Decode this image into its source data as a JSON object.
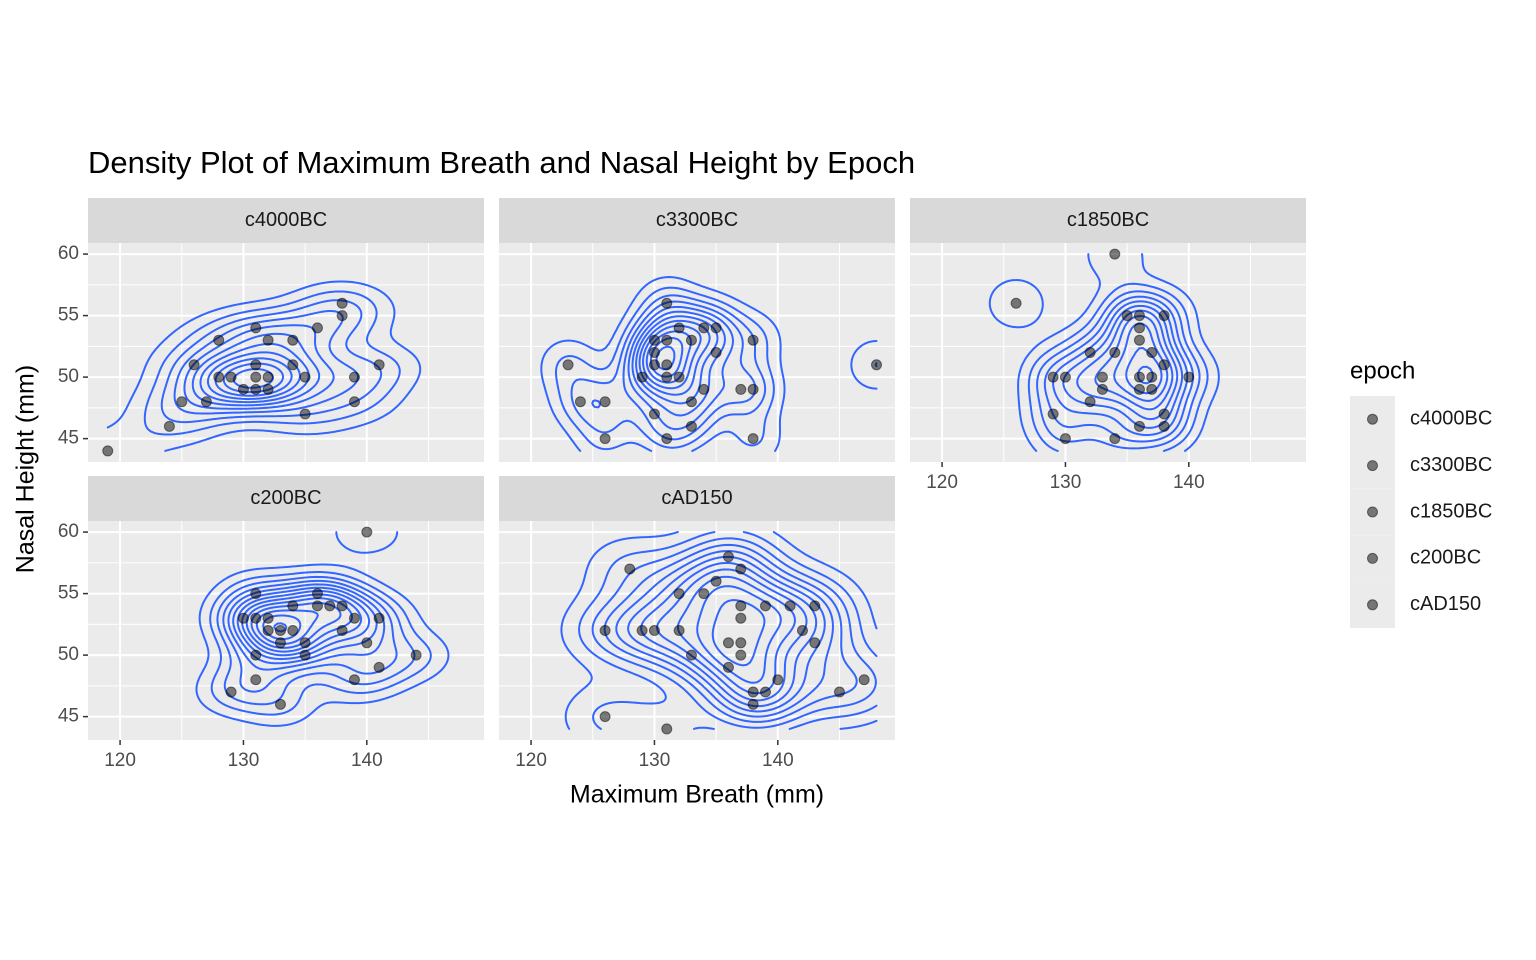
{
  "chart_data": {
    "type": "scatter",
    "title": "Density Plot of Maximum Breath and Nasal Height by Epoch",
    "x_label": "Maximum Breath (mm)",
    "y_label": "Nasal Height (mm)",
    "legend_title": "epoch",
    "xlim": [
      117.4,
      149.5
    ],
    "ylim": [
      43.1,
      60.9
    ],
    "xticks": [
      120,
      130,
      140
    ],
    "yticks": [
      45,
      50,
      55,
      60
    ],
    "grid": true,
    "contour_color": "#3366ff",
    "point_color": "#000000",
    "series": [
      {
        "name": "c4000BC",
        "x": [
          119,
          124,
          125,
          126,
          127,
          128,
          128,
          129,
          130,
          131,
          131,
          131,
          131,
          132,
          132,
          132,
          134,
          134,
          135,
          135,
          136,
          138,
          138,
          139,
          139,
          141
        ],
        "values": [
          44,
          46,
          48,
          51,
          48,
          53,
          50,
          50,
          49,
          54,
          51,
          50,
          49,
          53,
          50,
          49,
          53,
          51,
          50,
          47,
          54,
          56,
          55,
          50,
          48,
          51
        ]
      },
      {
        "name": "c3300BC",
        "x": [
          123,
          124,
          126,
          126,
          129,
          130,
          130,
          130,
          130,
          131,
          131,
          131,
          131,
          131,
          132,
          132,
          133,
          133,
          133,
          134,
          134,
          135,
          135,
          137,
          138,
          138,
          138,
          148
        ],
        "values": [
          51,
          48,
          48,
          45,
          50,
          53,
          52,
          51,
          47,
          56,
          53,
          51,
          50,
          45,
          54,
          50,
          53,
          48,
          46,
          54,
          49,
          54,
          52,
          49,
          53,
          49,
          45,
          51
        ]
      },
      {
        "name": "c1850BC",
        "x": [
          126,
          129,
          129,
          130,
          130,
          132,
          132,
          133,
          133,
          134,
          134,
          134,
          135,
          136,
          136,
          136,
          136,
          136,
          136,
          137,
          137,
          137,
          138,
          138,
          138,
          138,
          140
        ],
        "values": [
          56,
          50,
          47,
          50,
          45,
          52,
          48,
          50,
          49,
          60,
          52,
          45,
          55,
          55,
          54,
          53,
          50,
          49,
          46,
          52,
          50,
          49,
          55,
          51,
          47,
          46,
          50
        ]
      },
      {
        "name": "c200BC",
        "x": [
          129,
          130,
          131,
          131,
          131,
          131,
          132,
          132,
          133,
          133,
          133,
          134,
          134,
          135,
          135,
          136,
          136,
          137,
          138,
          138,
          139,
          139,
          140,
          140,
          141,
          141,
          144
        ],
        "values": [
          47,
          53,
          55,
          53,
          50,
          48,
          53,
          52,
          52,
          51,
          46,
          54,
          52,
          51,
          50,
          55,
          54,
          54,
          54,
          52,
          53,
          48,
          60,
          51,
          53,
          49,
          50
        ]
      },
      {
        "name": "cAD150",
        "x": [
          126,
          126,
          128,
          129,
          130,
          131,
          132,
          132,
          133,
          134,
          135,
          136,
          136,
          136,
          137,
          137,
          137,
          137,
          137,
          138,
          138,
          139,
          139,
          140,
          141,
          142,
          143,
          143,
          145,
          147
        ],
        "values": [
          45,
          52,
          57,
          52,
          52,
          44,
          55,
          52,
          50,
          55,
          56,
          58,
          49,
          51,
          57,
          54,
          53,
          51,
          50,
          47,
          46,
          54,
          47,
          48,
          54,
          52,
          54,
          51,
          47,
          48
        ]
      }
    ]
  }
}
